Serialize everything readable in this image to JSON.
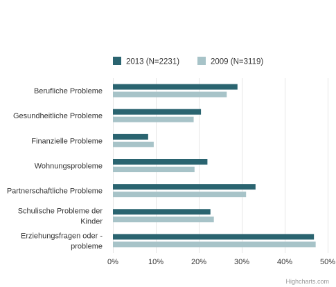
{
  "chart_data": {
    "type": "bar",
    "orientation": "horizontal",
    "categories": [
      "Berufliche Probleme",
      "Gesundheitliche Probleme",
      "Finanzielle Probleme",
      "Wohnungsprobleme",
      "Partnerschaftliche Probleme",
      "Schulische Probleme der Kinder",
      "Erziehungsfragen oder -probleme"
    ],
    "category_lines": [
      [
        "Berufliche Probleme"
      ],
      [
        "Gesundheitliche Probleme"
      ],
      [
        "Finanzielle Probleme"
      ],
      [
        "Wohnungsprobleme"
      ],
      [
        "Partnerschaftliche Probleme"
      ],
      [
        "Schulische Probleme der",
        "Kinder"
      ],
      [
        "Erziehungsfragen oder -",
        "probleme"
      ]
    ],
    "series": [
      {
        "name": "2013 (N=2231)",
        "color": "#2a6470",
        "values": [
          29,
          20.5,
          8.2,
          22,
          33.2,
          22.7,
          46.8
        ]
      },
      {
        "name": "2009 (N=3119)",
        "color": "#a7c3c8",
        "values": [
          26.5,
          18.8,
          9.5,
          19,
          31,
          23.5,
          47.2
        ]
      }
    ],
    "x_axis": {
      "min": 0,
      "max": 50,
      "ticks": [
        "0%",
        "10%",
        "20%",
        "30%",
        "40%",
        "50%"
      ],
      "tick_values": [
        0,
        10,
        20,
        30,
        40,
        50
      ]
    },
    "title": "",
    "xlabel": "",
    "ylabel": "",
    "grid": true,
    "legend_position": "top"
  },
  "credits": "Highcharts.com"
}
